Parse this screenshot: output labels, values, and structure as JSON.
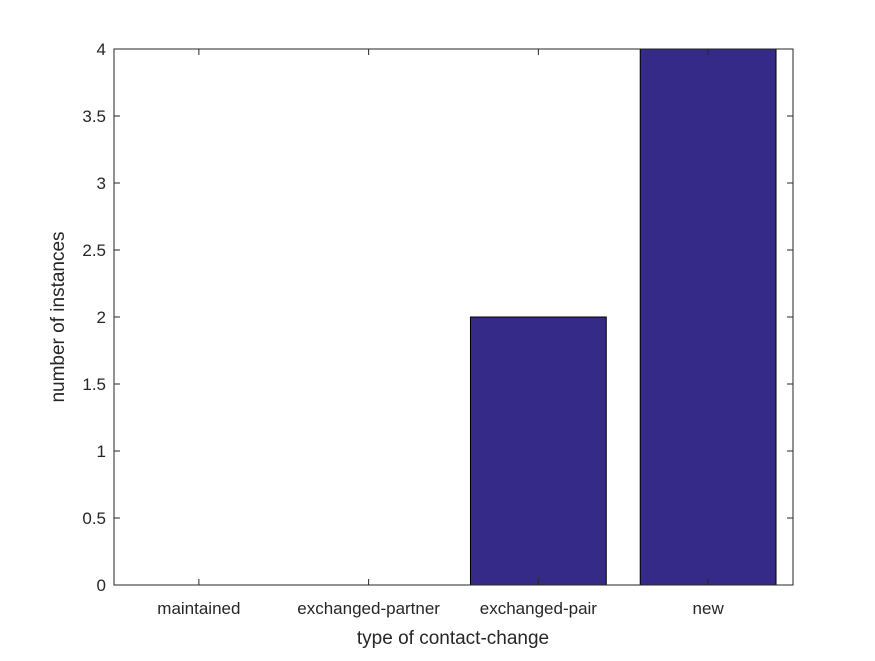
{
  "chart_data": {
    "type": "bar",
    "categories": [
      "maintained",
      "exchanged-partner",
      "exchanged-pair",
      "new"
    ],
    "values": [
      0,
      0,
      2,
      4
    ],
    "xlabel": "type of contact-change",
    "ylabel": "number of instances",
    "ylim": [
      0,
      4
    ],
    "yticks": [
      "0",
      "0.5",
      "1",
      "1.5",
      "2",
      "2.5",
      "3",
      "3.5",
      "4"
    ],
    "grid": false,
    "bar_color": "#352A87"
  }
}
